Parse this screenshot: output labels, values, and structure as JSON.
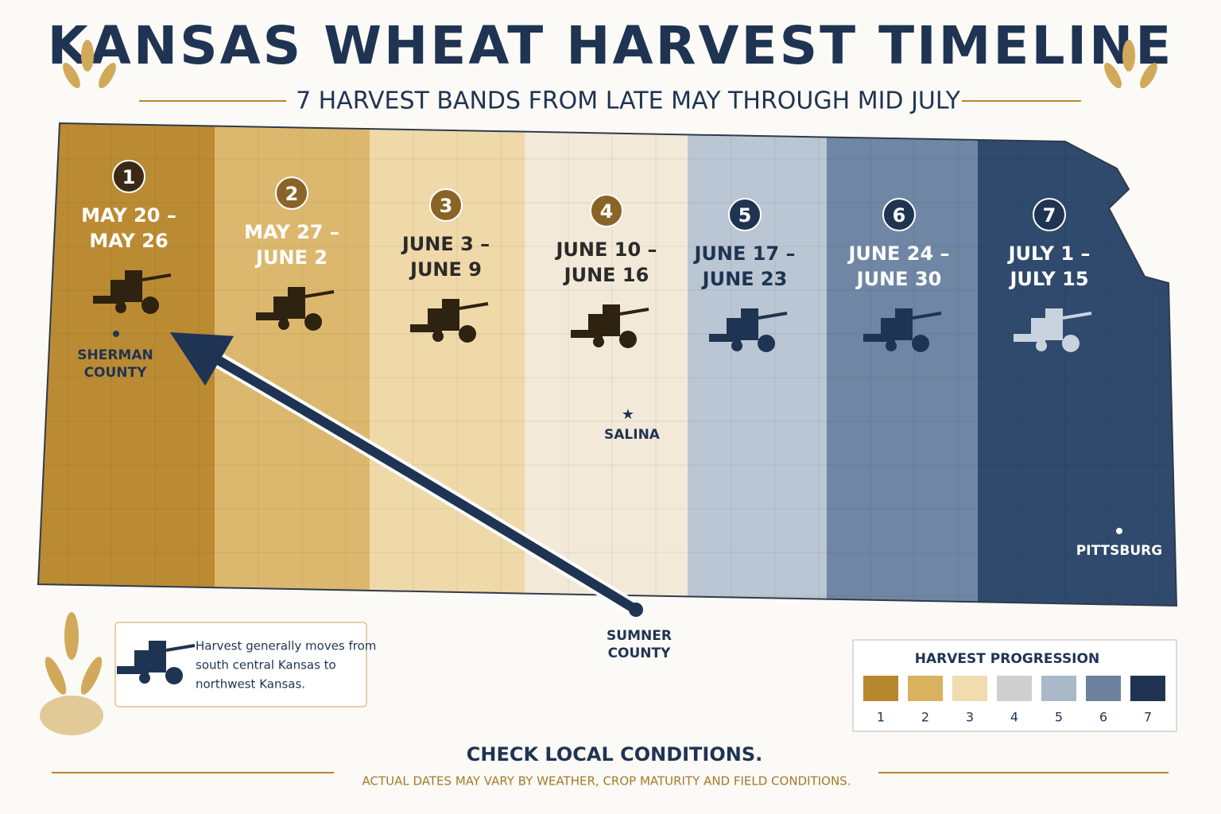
{
  "header": {
    "title": "KANSAS WHEAT HARVEST TIMELINE",
    "subtitle": "7 HARVEST BANDS FROM LATE MAY THROUGH MID JULY"
  },
  "bands": [
    {
      "number": "1",
      "dates": [
        "MAY 20 –",
        "MAY 26"
      ],
      "color": "#bb8b33"
    },
    {
      "number": "2",
      "dates": [
        "MAY 27 –",
        "JUNE 2"
      ],
      "color": "#dcb86e"
    },
    {
      "number": "3",
      "dates": [
        "JUNE 3 –",
        "JUNE 9"
      ],
      "color": "#efd9a8"
    },
    {
      "number": "4",
      "dates": [
        "JUNE 10 –",
        "JUNE 16"
      ],
      "color": "#f3e9d8"
    },
    {
      "number": "5",
      "dates": [
        "JUNE 17 –",
        "JUNE 23"
      ],
      "color": "#bac6d3"
    },
    {
      "number": "6",
      "dates": [
        "JUNE 24 –",
        "JUNE 30"
      ],
      "color": "#6f87a4"
    },
    {
      "number": "7",
      "dates": [
        "JULY 1 –",
        "JULY 15"
      ],
      "color": "#2f4a6c"
    }
  ],
  "places": {
    "sherman": [
      "SHERMAN",
      "COUNTY"
    ],
    "salina": "SALINA",
    "pittsburg": "PITTSBURG",
    "sumner": [
      "SUMNER",
      "COUNTY"
    ]
  },
  "note": [
    "Harvest generally moves from",
    "south central Kansas to",
    "northwest Kansas."
  ],
  "legend": {
    "title": "HARVEST PROGRESSION",
    "items": [
      {
        "label": "1",
        "color": "#b8862c"
      },
      {
        "label": "2",
        "color": "#d8b25f"
      },
      {
        "label": "3",
        "color": "#f0dcae"
      },
      {
        "label": "4",
        "color": "#cfcfcf"
      },
      {
        "label": "5",
        "color": "#a9b9ca"
      },
      {
        "label": "6",
        "color": "#6b819d"
      },
      {
        "label": "7",
        "color": "#1f3452"
      }
    ]
  },
  "footer": {
    "title": "CHECK LOCAL CONDITIONS.",
    "subtitle": "ACTUAL DATES MAY VARY BY WEATHER, CROP MATURITY AND FIELD CONDITIONS."
  }
}
